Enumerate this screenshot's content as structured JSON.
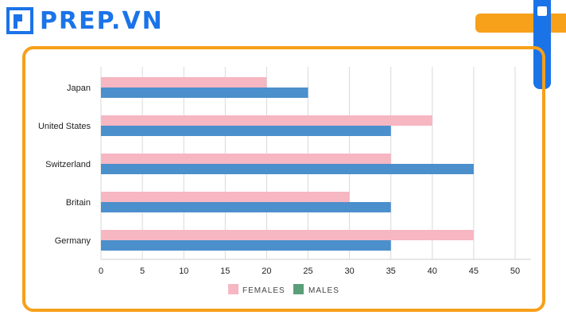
{
  "brand": {
    "name": "PREP.VN",
    "colors": {
      "blue": "#1b73e8",
      "orange": "#f7a01a"
    }
  },
  "chart_data": {
    "type": "bar",
    "orientation": "horizontal",
    "categories": [
      "Japan",
      "United States",
      "Switzerland",
      "Britain",
      "Germany"
    ],
    "series": [
      {
        "name": "FEMALES",
        "color": "#f6b6c2",
        "values": [
          20,
          40,
          35,
          30,
          45
        ]
      },
      {
        "name": "MALES",
        "color": "#4b8fcc",
        "legend_color": "#5a9e7a",
        "values": [
          25,
          35,
          45,
          35,
          35
        ]
      }
    ],
    "xlim": [
      0,
      50
    ],
    "xticks": [
      0,
      5,
      10,
      15,
      20,
      25,
      30,
      35,
      40,
      45,
      50
    ],
    "grid": true,
    "legend_position": "bottom"
  }
}
